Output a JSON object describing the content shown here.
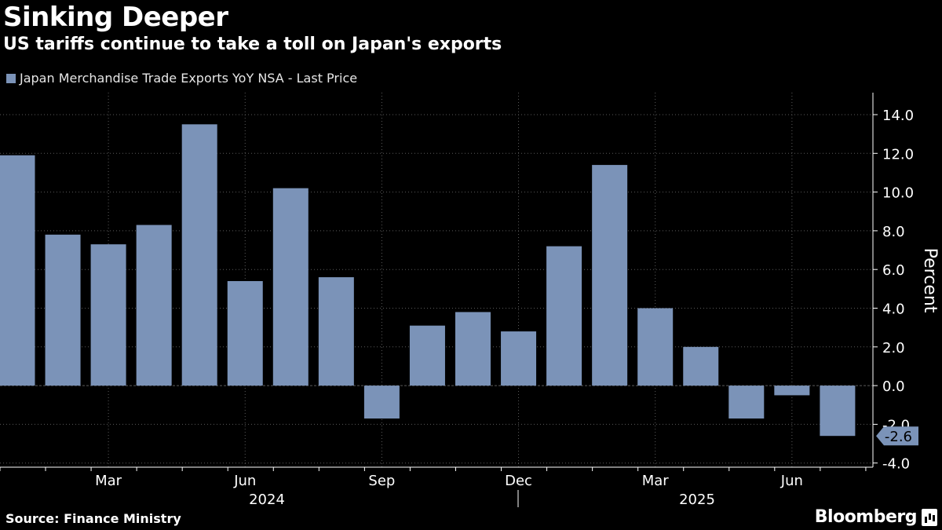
{
  "header": {
    "title": "Sinking Deeper",
    "subtitle": "US tariffs continue to take a toll on Japan's exports"
  },
  "legend": {
    "label": "Japan Merchandise Trade Exports YoY NSA - Last Price"
  },
  "footer": {
    "source": "Source: Finance Ministry",
    "brand": "Bloomberg"
  },
  "colors": {
    "background": "#000000",
    "bar": "#7b93b8",
    "grid": "#5a5a5a",
    "text": "#ffffff"
  },
  "chart_data": {
    "type": "bar",
    "categories": [
      "Jan 2024",
      "Feb 2024",
      "Mar 2024",
      "Apr 2024",
      "May 2024",
      "Jun 2024",
      "Jul 2024",
      "Aug 2024",
      "Sep 2024",
      "Oct 2024",
      "Nov 2024",
      "Dec 2024",
      "Jan 2025",
      "Feb 2025",
      "Mar 2025",
      "Apr 2025",
      "May 2025",
      "Jun 2025",
      "Jul 2025"
    ],
    "values": [
      11.9,
      7.8,
      7.3,
      8.3,
      13.5,
      5.4,
      10.2,
      5.6,
      -1.7,
      3.1,
      3.8,
      2.8,
      7.2,
      11.4,
      4.0,
      2.0,
      -1.7,
      -0.5,
      -2.6
    ],
    "ylabel": "Percent",
    "ylim": [
      -4.0,
      14.0
    ],
    "yticks": [
      "14.0",
      "12.0",
      "10.0",
      "8.0",
      "6.0",
      "4.0",
      "2.0",
      "0.0",
      "-2.0",
      "-4.0"
    ],
    "xtick_labels": [
      "Mar",
      "Jun",
      "Sep",
      "Dec",
      "Mar",
      "Jun"
    ],
    "year_labels": [
      "2024",
      "2025"
    ],
    "last_value_label": "-2.6",
    "grid": true,
    "legend_position": "top-left"
  }
}
